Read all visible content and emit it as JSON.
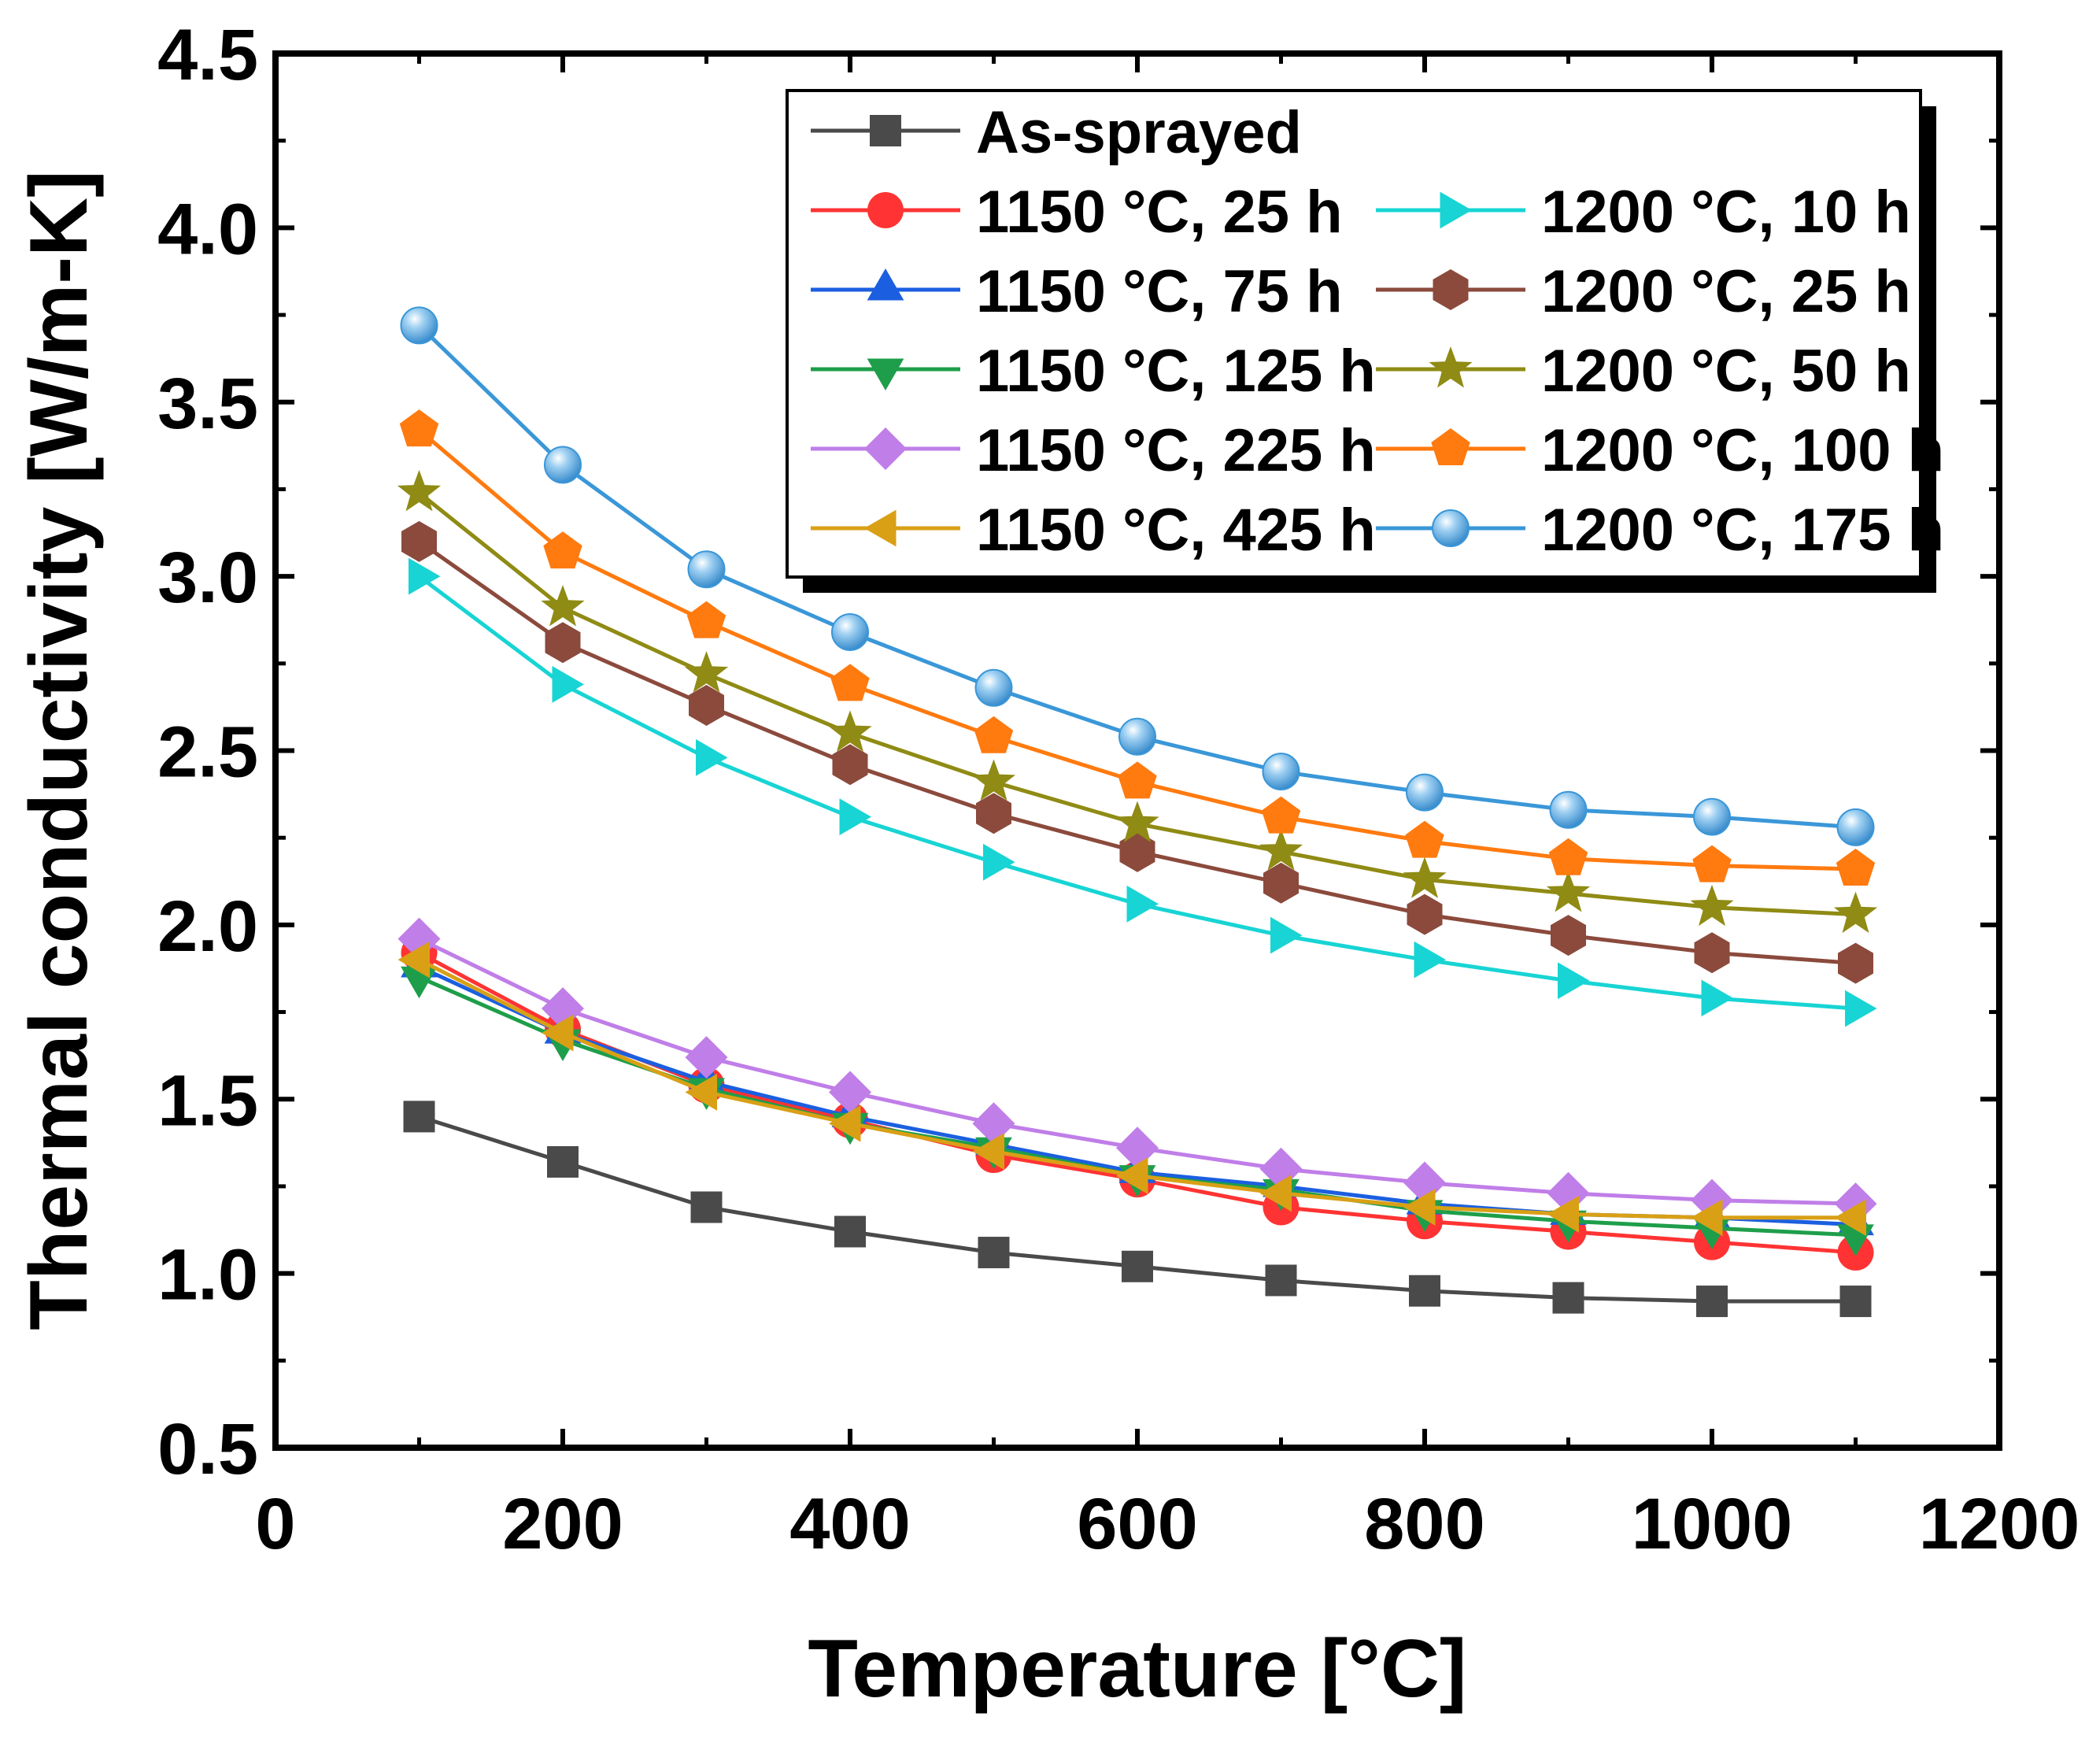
{
  "chart_data": {
    "type": "line",
    "title": "",
    "xlabel": "Temperature [°C]",
    "ylabel": "Thermal conductivity [W/m-K]",
    "xlim": [
      0,
      1200
    ],
    "ylim": [
      0.5,
      4.5
    ],
    "xticks": [
      "0",
      "200",
      "400",
      "600",
      "800",
      "1000",
      "1200"
    ],
    "yticks": [
      "0.5",
      "1.0",
      "1.5",
      "2.0",
      "2.5",
      "3.0",
      "3.5",
      "4.0",
      "4.5"
    ],
    "x": [
      100,
      200,
      300,
      400,
      500,
      600,
      700,
      800,
      900,
      1000,
      1100
    ],
    "grid": false,
    "legend_position": "top-right",
    "series": [
      {
        "name": "As-sprayed",
        "color": "#4a4a4a",
        "marker": "square",
        "values": [
          1.45,
          1.32,
          1.19,
          1.12,
          1.06,
          1.02,
          0.98,
          0.95,
          0.93,
          0.92,
          0.92
        ]
      },
      {
        "name": "1150 °C, 25 h",
        "color": "#ff3333",
        "marker": "circle",
        "values": [
          1.92,
          1.7,
          1.54,
          1.44,
          1.34,
          1.27,
          1.19,
          1.15,
          1.12,
          1.09,
          1.06
        ]
      },
      {
        "name": "1150 °C, 75 h",
        "color": "#1b5fe0",
        "marker": "triangle-up",
        "values": [
          1.88,
          1.69,
          1.55,
          1.45,
          1.37,
          1.29,
          1.25,
          1.2,
          1.17,
          1.16,
          1.14
        ]
      },
      {
        "name": "1150 °C, 125 h",
        "color": "#1e9e4a",
        "marker": "triangle-down",
        "values": [
          1.85,
          1.67,
          1.53,
          1.43,
          1.36,
          1.28,
          1.24,
          1.18,
          1.15,
          1.13,
          1.11
        ]
      },
      {
        "name": "1150 °C, 225 h",
        "color": "#c07ee8",
        "marker": "diamond",
        "values": [
          1.96,
          1.76,
          1.62,
          1.52,
          1.43,
          1.36,
          1.3,
          1.26,
          1.23,
          1.21,
          1.2
        ]
      },
      {
        "name": "1150 °C, 425 h",
        "color": "#d9a016",
        "marker": "triangle-left",
        "values": [
          1.9,
          1.69,
          1.52,
          1.43,
          1.35,
          1.28,
          1.23,
          1.19,
          1.17,
          1.16,
          1.16
        ]
      },
      {
        "name": "1200 °C, 10 h",
        "color": "#18d4d4",
        "marker": "triangle-right",
        "values": [
          3.0,
          2.69,
          2.48,
          2.31,
          2.18,
          2.06,
          1.97,
          1.9,
          1.84,
          1.79,
          1.76
        ]
      },
      {
        "name": "1200 °C, 25 h",
        "color": "#8b4a3c",
        "marker": "hexagon",
        "values": [
          3.1,
          2.81,
          2.63,
          2.46,
          2.32,
          2.21,
          2.12,
          2.03,
          1.97,
          1.92,
          1.89
        ]
      },
      {
        "name": "1200 °C, 50 h",
        "color": "#8f8b14",
        "marker": "star",
        "values": [
          3.24,
          2.91,
          2.72,
          2.55,
          2.41,
          2.29,
          2.21,
          2.13,
          2.09,
          2.05,
          2.03
        ]
      },
      {
        "name": "1200 °C, 100 h",
        "color": "#ff7a0f",
        "marker": "pentagon",
        "values": [
          3.42,
          3.07,
          2.87,
          2.69,
          2.54,
          2.41,
          2.31,
          2.24,
          2.19,
          2.17,
          2.16
        ]
      },
      {
        "name": "1200 °C, 175 h",
        "color": "#3a97d8",
        "marker": "sphere",
        "values": [
          3.72,
          3.32,
          3.02,
          2.84,
          2.68,
          2.54,
          2.44,
          2.38,
          2.33,
          2.31,
          2.28
        ]
      }
    ]
  }
}
